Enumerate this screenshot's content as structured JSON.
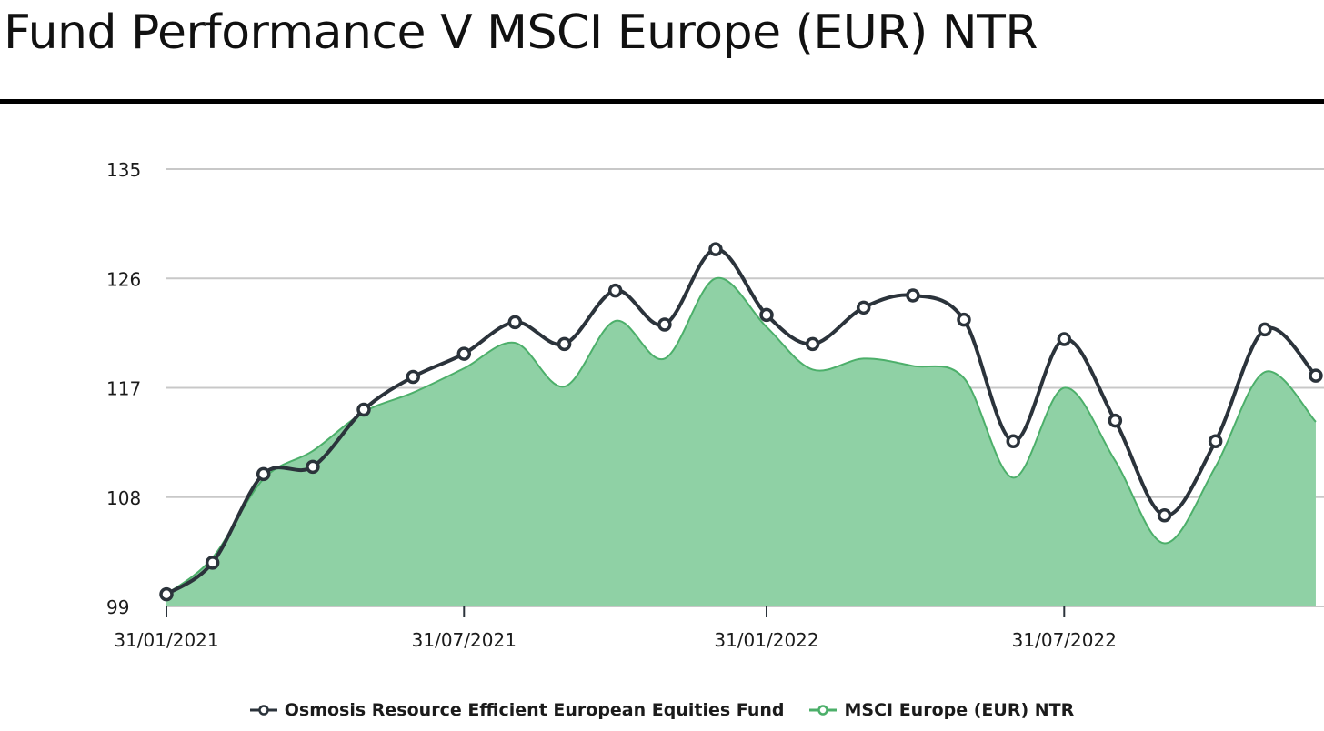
{
  "title": "Fund Performance V MSCI Europe (EUR) NTR",
  "colors": {
    "fund": "#2b333b",
    "benchmark_line": "#4caf6a",
    "benchmark_fill": "#8fd1a5",
    "grid": "#c8c8c8",
    "title_rule": "#000000"
  },
  "legend": [
    {
      "label": "Osmosis Resource Efficient European Equities Fund",
      "color": "#2b333b"
    },
    {
      "label": "MSCI Europe (EUR) NTR",
      "color": "#4caf6a"
    }
  ],
  "chart_data": {
    "type": "line",
    "x": [
      "2021-01-31",
      "2021-02-28",
      "2021-03-31",
      "2021-04-30",
      "2021-05-31",
      "2021-06-30",
      "2021-07-31",
      "2021-08-31",
      "2021-09-30",
      "2021-10-31",
      "2021-11-30",
      "2021-12-31",
      "2022-01-31",
      "2022-02-28",
      "2022-03-31",
      "2022-04-30",
      "2022-05-31",
      "2022-06-30",
      "2022-07-31",
      "2022-08-31",
      "2022-09-30",
      "2022-10-31",
      "2022-11-30",
      "2022-12-31"
    ],
    "series": [
      {
        "name": "Osmosis Resource Efficient European Equities Fund",
        "style": "line with markers",
        "values": [
          100.0,
          102.6,
          109.9,
          110.5,
          115.2,
          117.9,
          119.8,
          122.4,
          120.6,
          125.0,
          122.2,
          128.4,
          123.0,
          120.6,
          123.6,
          124.6,
          122.6,
          112.6,
          121.0,
          114.3,
          106.5,
          112.6,
          121.8,
          118.0
        ]
      },
      {
        "name": "MSCI Europe (EUR) NTR",
        "style": "filled area",
        "values": [
          100.0,
          103.0,
          109.5,
          111.8,
          115.0,
          116.6,
          118.6,
          120.7,
          117.1,
          122.5,
          119.4,
          126.0,
          122.0,
          118.5,
          119.4,
          118.8,
          117.8,
          109.6,
          117.0,
          111.0,
          104.2,
          110.5,
          118.3,
          114.2
        ]
      }
    ],
    "xticks": [
      "31/01/2021",
      "31/07/2021",
      "31/01/2022",
      "31/07/2022"
    ],
    "yticks": [
      99,
      108,
      117,
      126,
      135
    ],
    "ylim": [
      99,
      135
    ],
    "xlim": [
      "2021-01-31",
      "2023-01-05"
    ],
    "grid": "horizontal",
    "legend_position": "bottom"
  }
}
